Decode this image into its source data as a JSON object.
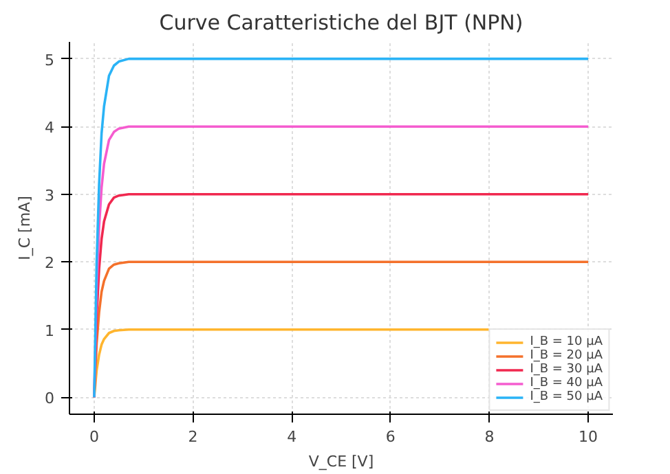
{
  "chart_data": {
    "type": "line",
    "title": "Curve Caratteristiche del BJT (NPN)",
    "xlabel": "V_CE [V]",
    "ylabel": "I_C [mA]",
    "x": [
      0,
      0.05,
      0.1,
      0.15,
      0.2,
      0.3,
      0.4,
      0.5,
      0.7,
      1,
      8,
      10
    ],
    "series": [
      {
        "name": "I_B = 10 µA",
        "color": "#ffb52e",
        "values": [
          0,
          0.4,
          0.63,
          0.78,
          0.86,
          0.95,
          0.98,
          0.99,
          1,
          1,
          1,
          null
        ]
      },
      {
        "name": "I_B = 20 µA",
        "color": "#f4712b",
        "values": [
          0,
          0.8,
          1.26,
          1.56,
          1.72,
          1.9,
          1.96,
          1.98,
          2,
          2,
          2,
          2
        ]
      },
      {
        "name": "I_B = 30 µA",
        "color": "#f0284f",
        "values": [
          0,
          1.2,
          1.9,
          2.34,
          2.6,
          2.85,
          2.95,
          2.98,
          3,
          3,
          3,
          3
        ]
      },
      {
        "name": "I_B = 40 µA",
        "color": "#f55ccf",
        "values": [
          0,
          1.6,
          2.52,
          3.1,
          3.45,
          3.8,
          3.92,
          3.97,
          4,
          4,
          4,
          4
        ]
      },
      {
        "name": "I_B = 50 µA",
        "color": "#2ab3f6",
        "values": [
          0,
          2.0,
          3.15,
          3.9,
          4.3,
          4.75,
          4.9,
          4.96,
          5,
          5,
          5,
          5
        ]
      }
    ],
    "xlim": [
      -0.5,
      10.5
    ],
    "ylim": [
      -0.25,
      5.25
    ],
    "xticks": [
      0,
      2,
      4,
      6,
      8,
      10
    ],
    "yticks": [
      0,
      1,
      2,
      3,
      4,
      5
    ],
    "grid": true,
    "legend": "bottom right",
    "marker": "none",
    "line_style": "solid"
  }
}
